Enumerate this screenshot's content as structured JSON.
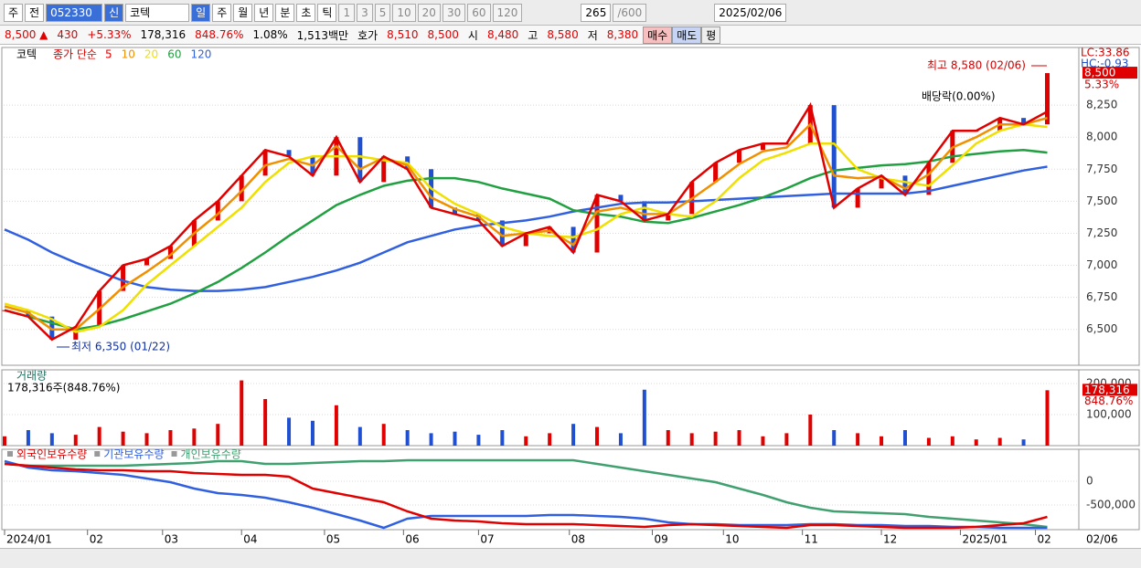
{
  "toolbar": {
    "market": "주",
    "prev": "전",
    "code": "052330",
    "badge": "신",
    "name": "코텍",
    "periods": [
      "일",
      "주",
      "월",
      "년",
      "분",
      "초",
      "틱"
    ],
    "intervals": [
      "1",
      "3",
      "5",
      "10",
      "20",
      "30",
      "60",
      "120"
    ],
    "count": "265",
    "max": "/600",
    "date": "2025/02/06"
  },
  "quote": [
    "8,500 ▲",
    "430",
    "+5.33%",
    "178,316",
    "848.76%",
    "1.08%",
    "1,513백만",
    "호가",
    "8,510",
    "8,500",
    "시",
    "8,480",
    "고",
    "8,580",
    "저",
    "8,380",
    "매수",
    "매도",
    "평"
  ],
  "date_axis_end": "02/06",
  "chart_data": [
    {
      "type": "candlestick",
      "label": "코텍",
      "legend_prefix": "종가 단순",
      "xlim": [
        0,
        264
      ],
      "x": [
        0,
        6,
        12,
        18,
        24,
        30,
        36,
        42,
        48,
        54,
        60,
        66,
        72,
        78,
        84,
        90,
        96,
        102,
        108,
        114,
        120,
        126,
        132,
        138,
        144,
        150,
        156,
        162,
        168,
        174,
        180,
        186,
        192,
        198,
        204,
        210,
        216,
        222,
        228,
        234,
        240,
        246,
        252,
        258,
        264
      ],
      "xticks": [
        {
          "value": 0,
          "label": "2024/01"
        },
        {
          "value": 21,
          "label": "02"
        },
        {
          "value": 40,
          "label": "03"
        },
        {
          "value": 60,
          "label": "04"
        },
        {
          "value": 81,
          "label": "05"
        },
        {
          "value": 101,
          "label": "06"
        },
        {
          "value": 120,
          "label": "07"
        },
        {
          "value": 143,
          "label": "08"
        },
        {
          "value": 164,
          "label": "09"
        },
        {
          "value": 182,
          "label": "10"
        },
        {
          "value": 202,
          "label": "11"
        },
        {
          "value": 222,
          "label": "12"
        },
        {
          "value": 242,
          "label": "2025/01"
        },
        {
          "value": 261,
          "label": "02"
        }
      ],
      "ylim": [
        6220,
        8700
      ],
      "yticks": [
        {
          "value": 6500,
          "label": "6,500"
        },
        {
          "value": 6750,
          "label": "6,750"
        },
        {
          "value": 7000,
          "label": "7,000"
        },
        {
          "value": 7250,
          "label": "7,250"
        },
        {
          "value": 7500,
          "label": "7,500"
        },
        {
          "value": 7750,
          "label": "7,750"
        },
        {
          "value": 8000,
          "label": "8,000"
        },
        {
          "value": 8250,
          "label": "8,250"
        }
      ],
      "grid": true,
      "up_color": "#e00000",
      "down_color": "#2050d0",
      "closes": [
        6650,
        6600,
        6420,
        6520,
        6800,
        7000,
        7050,
        7150,
        7350,
        7500,
        7700,
        7900,
        7850,
        7700,
        8000,
        7650,
        7850,
        7750,
        7450,
        7400,
        7350,
        7150,
        7250,
        7300,
        7100,
        7550,
        7500,
        7350,
        7400,
        7650,
        7800,
        7900,
        7950,
        7950,
        8250,
        7450,
        7600,
        7700,
        7550,
        7800,
        8050,
        8050,
        8150,
        8100,
        8500
      ],
      "series": [
        {
          "name": "5",
          "color": "#e00000",
          "values": [
            6650,
            6600,
            6420,
            6520,
            6800,
            7000,
            7050,
            7150,
            7350,
            7500,
            7700,
            7900,
            7850,
            7700,
            8000,
            7650,
            7850,
            7750,
            7450,
            7400,
            7350,
            7150,
            7250,
            7300,
            7100,
            7550,
            7500,
            7350,
            7400,
            7650,
            7800,
            7900,
            7950,
            7950,
            8250,
            7450,
            7600,
            7700,
            7550,
            7800,
            8050,
            8050,
            8150,
            8100,
            8200
          ]
        },
        {
          "name": "10",
          "color": "#f09000",
          "values": [
            6680,
            6630,
            6500,
            6500,
            6660,
            6830,
            6950,
            7080,
            7250,
            7400,
            7580,
            7780,
            7830,
            7780,
            7930,
            7750,
            7840,
            7780,
            7530,
            7440,
            7380,
            7230,
            7250,
            7270,
            7160,
            7420,
            7450,
            7400,
            7400,
            7520,
            7650,
            7790,
            7890,
            7920,
            8100,
            7700,
            7680,
            7690,
            7600,
            7710,
            7920,
            8000,
            8100,
            8100,
            8150
          ]
        },
        {
          "name": "20",
          "color": "#f0e000",
          "values": [
            6700,
            6650,
            6580,
            6480,
            6520,
            6650,
            6850,
            7000,
            7150,
            7300,
            7450,
            7650,
            7800,
            7850,
            7850,
            7850,
            7820,
            7800,
            7600,
            7480,
            7400,
            7300,
            7250,
            7230,
            7220,
            7280,
            7400,
            7450,
            7400,
            7380,
            7500,
            7680,
            7820,
            7880,
            7950,
            7950,
            7750,
            7680,
            7650,
            7620,
            7780,
            7950,
            8050,
            8100,
            8080
          ]
        },
        {
          "name": "60",
          "color": "#20a040",
          "values": [
            6650,
            6600,
            6550,
            6500,
            6530,
            6580,
            6640,
            6700,
            6780,
            6870,
            6980,
            7100,
            7230,
            7350,
            7470,
            7550,
            7620,
            7660,
            7680,
            7680,
            7650,
            7600,
            7560,
            7520,
            7430,
            7400,
            7380,
            7340,
            7330,
            7370,
            7420,
            7470,
            7530,
            7600,
            7680,
            7740,
            7760,
            7780,
            7790,
            7810,
            7850,
            7870,
            7890,
            7900,
            7880
          ]
        },
        {
          "name": "120",
          "color": "#3060e0",
          "values": [
            7280,
            7200,
            7100,
            7020,
            6950,
            6880,
            6830,
            6810,
            6800,
            6800,
            6810,
            6830,
            6870,
            6910,
            6960,
            7020,
            7100,
            7180,
            7230,
            7280,
            7310,
            7330,
            7350,
            7380,
            7420,
            7450,
            7480,
            7490,
            7490,
            7500,
            7510,
            7520,
            7530,
            7540,
            7550,
            7560,
            7560,
            7560,
            7560,
            7580,
            7620,
            7660,
            7700,
            7740,
            7770
          ]
        }
      ],
      "annotations": {
        "high": "최고 8,580 (02/06)",
        "low": "최저 6,350 (01/22)",
        "dividend": "배당락(0.00%)",
        "lc": "LC:33.86",
        "hc": "HC:-0.93",
        "last_price": "8,500",
        "last_change": "5.33%"
      }
    },
    {
      "type": "bar",
      "label": "거래량",
      "sublabel": "178,316주(848.76%)",
      "ylim": [
        0,
        244000
      ],
      "yticks": [
        {
          "value": 100000,
          "label": "100,000"
        },
        {
          "value": 200000,
          "label": "200,000"
        }
      ],
      "values": [
        30000,
        50000,
        40000,
        35000,
        60000,
        45000,
        40000,
        50000,
        55000,
        70000,
        210000,
        150000,
        90000,
        80000,
        130000,
        60000,
        70000,
        50000,
        40000,
        45000,
        35000,
        50000,
        30000,
        40000,
        70000,
        60000,
        40000,
        180000,
        50000,
        40000,
        45000,
        50000,
        30000,
        40000,
        100000,
        50000,
        40000,
        30000,
        50000,
        25000,
        30000,
        20000,
        25000,
        20000,
        178316
      ],
      "last_label": "178,316",
      "last_ratio": "848.76%"
    },
    {
      "type": "line",
      "ylim": [
        -1019000,
        673000
      ],
      "yticks": [
        0,
        {
          "value": -500000,
          "label": "-500,000"
        }
      ],
      "series": [
        {
          "name": "외국인보유수량",
          "color": "#e00000",
          "values": [
            365000,
            327000,
            288000,
            250000,
            231000,
            231000,
            212000,
            212000,
            173000,
            154000,
            135000,
            135000,
            96000,
            -154000,
            -250000,
            -346000,
            -442000,
            -635000,
            -788000,
            -827000,
            -846000,
            -885000,
            -904000,
            -904000,
            -904000,
            -923000,
            -942000,
            -962000,
            -923000,
            -904000,
            -923000,
            -942000,
            -962000,
            -981000,
            -923000,
            -923000,
            -942000,
            -962000,
            -981000,
            -981000,
            -981000,
            -962000,
            -923000,
            -885000,
            -750000
          ]
        },
        {
          "name": "기관보유수량",
          "color": "#3060e0",
          "values": [
            423000,
            288000,
            231000,
            212000,
            173000,
            135000,
            58000,
            -19000,
            -154000,
            -250000,
            -288000,
            -346000,
            -442000,
            -558000,
            -692000,
            -827000,
            -981000,
            -788000,
            -731000,
            -731000,
            -731000,
            -731000,
            -731000,
            -712000,
            -712000,
            -731000,
            -750000,
            -788000,
            -865000,
            -904000,
            -904000,
            -923000,
            -923000,
            -923000,
            -904000,
            -904000,
            -923000,
            -923000,
            -942000,
            -942000,
            -962000,
            -962000,
            -981000,
            -981000,
            -981000
          ]
        },
        {
          "name": "개인보유수량",
          "color": "#40a070",
          "values": [
            365000,
            327000,
            327000,
            327000,
            327000,
            327000,
            346000,
            365000,
            385000,
            423000,
            423000,
            365000,
            365000,
            385000,
            404000,
            423000,
            423000,
            442000,
            442000,
            442000,
            442000,
            442000,
            442000,
            442000,
            442000,
            365000,
            288000,
            212000,
            135000,
            58000,
            -19000,
            -154000,
            -288000,
            -442000,
            -558000,
            -635000,
            -654000,
            -673000,
            -692000,
            -750000,
            -788000,
            -827000,
            -865000,
            -904000,
            -962000
          ]
        }
      ]
    }
  ]
}
